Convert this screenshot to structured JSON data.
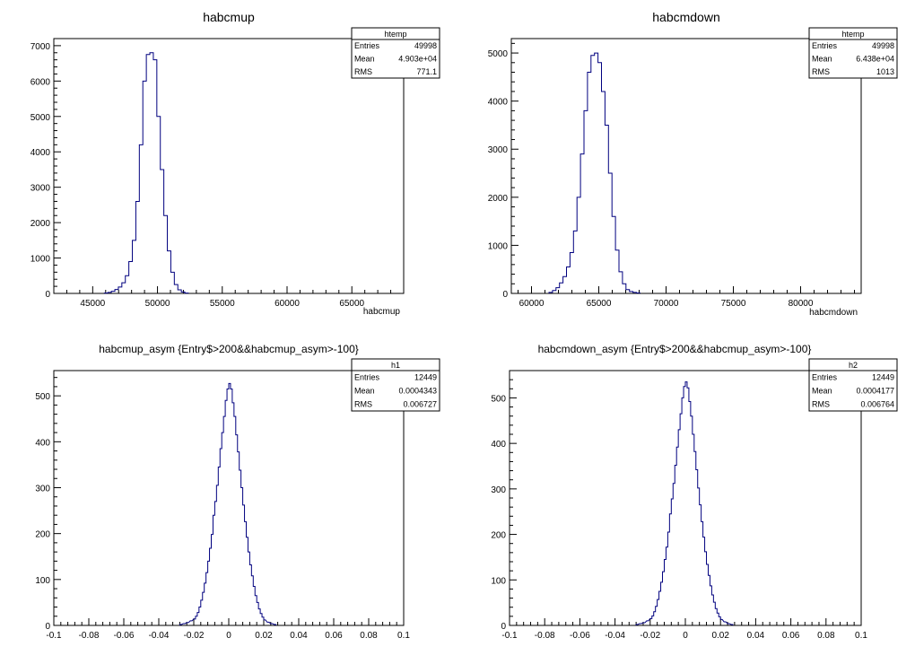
{
  "chart_data": [
    {
      "type": "histogram",
      "title": "habcmup",
      "xlabel": "habcmup",
      "ylabel": "",
      "xlim": [
        42000,
        69000
      ],
      "ylim": [
        0,
        7200
      ],
      "x_ticks": [
        45000,
        50000,
        55000,
        60000,
        65000
      ],
      "y_ticks": [
        0,
        1000,
        2000,
        3000,
        4000,
        5000,
        6000,
        7000
      ],
      "x_tick_labels": [
        "45000",
        "50000",
        "55000",
        "60000",
        "65000"
      ],
      "y_tick_labels": [
        "0",
        "1000",
        "2000",
        "3000",
        "4000",
        "5000",
        "6000",
        "7000"
      ],
      "bin_width": 270,
      "bins": [
        [
          45900,
          10
        ],
        [
          46170,
          30
        ],
        [
          46440,
          60
        ],
        [
          46710,
          110
        ],
        [
          46980,
          180
        ],
        [
          47250,
          300
        ],
        [
          47520,
          500
        ],
        [
          47790,
          900
        ],
        [
          48060,
          1500
        ],
        [
          48330,
          2600
        ],
        [
          48600,
          4200
        ],
        [
          48870,
          6000
        ],
        [
          49140,
          6750
        ],
        [
          49410,
          6800
        ],
        [
          49680,
          6600
        ],
        [
          49950,
          5000
        ],
        [
          50220,
          3500
        ],
        [
          50490,
          2200
        ],
        [
          50760,
          1200
        ],
        [
          51030,
          600
        ],
        [
          51300,
          250
        ],
        [
          51570,
          100
        ],
        [
          51840,
          40
        ],
        [
          52110,
          10
        ]
      ],
      "stats": {
        "name": "htemp",
        "rows": [
          {
            "label": "Entries",
            "value": "49998"
          },
          {
            "label": "Mean",
            "value": "4.903e+04"
          },
          {
            "label": "RMS",
            "value": "771.1"
          }
        ]
      }
    },
    {
      "type": "histogram",
      "title": "habcmdown",
      "xlabel": "habcmdown",
      "ylabel": "",
      "xlim": [
        58500,
        84500
      ],
      "ylim": [
        0,
        5300
      ],
      "x_ticks": [
        60000,
        65000,
        70000,
        75000,
        80000
      ],
      "y_ticks": [
        0,
        1000,
        2000,
        3000,
        4000,
        5000
      ],
      "x_tick_labels": [
        "60000",
        "65000",
        "70000",
        "75000",
        "80000"
      ],
      "y_tick_labels": [
        "0",
        "1000",
        "2000",
        "3000",
        "4000",
        "5000"
      ],
      "bin_width": 260,
      "bins": [
        [
          61300,
          20
        ],
        [
          61560,
          60
        ],
        [
          61820,
          120
        ],
        [
          62080,
          220
        ],
        [
          62340,
          350
        ],
        [
          62600,
          550
        ],
        [
          62860,
          850
        ],
        [
          63120,
          1300
        ],
        [
          63380,
          2000
        ],
        [
          63640,
          2900
        ],
        [
          63900,
          3800
        ],
        [
          64160,
          4600
        ],
        [
          64420,
          4950
        ],
        [
          64680,
          5000
        ],
        [
          64940,
          4800
        ],
        [
          65200,
          4200
        ],
        [
          65460,
          3500
        ],
        [
          65720,
          2500
        ],
        [
          65980,
          1600
        ],
        [
          66240,
          900
        ],
        [
          66500,
          450
        ],
        [
          66760,
          200
        ],
        [
          67020,
          80
        ],
        [
          67280,
          40
        ],
        [
          67540,
          20
        ],
        [
          67800,
          10
        ]
      ],
      "stats": {
        "name": "htemp",
        "rows": [
          {
            "label": "Entries",
            "value": "49998"
          },
          {
            "label": "Mean",
            "value": "6.438e+04"
          },
          {
            "label": "RMS",
            "value": "1013"
          }
        ]
      }
    },
    {
      "type": "histogram",
      "title": "habcmup_asym {Entry$>200&&habcmup_asym>-100}",
      "xlabel": "",
      "ylabel": "",
      "xlim": [
        -0.1,
        0.1
      ],
      "ylim": [
        0,
        555
      ],
      "x_ticks": [
        -0.1,
        -0.08,
        -0.06,
        -0.04,
        -0.02,
        0,
        0.02,
        0.04,
        0.06,
        0.08,
        0.1
      ],
      "y_ticks": [
        0,
        100,
        200,
        300,
        400,
        500
      ],
      "x_tick_labels": [
        "-0.1",
        "-0.08",
        "-0.06",
        "-0.04",
        "-0.02",
        "0",
        "0.02",
        "0.04",
        "0.06",
        "0.08",
        "0.1"
      ],
      "y_tick_labels": [
        "0",
        "100",
        "200",
        "300",
        "400",
        "500"
      ],
      "bin_width": 0.001,
      "bins": [
        [
          -0.028,
          2
        ],
        [
          -0.026,
          4
        ],
        [
          -0.024,
          6
        ],
        [
          -0.022,
          10
        ],
        [
          -0.02,
          14
        ],
        [
          -0.019,
          20
        ],
        [
          -0.018,
          28
        ],
        [
          -0.017,
          40
        ],
        [
          -0.016,
          55
        ],
        [
          -0.015,
          72
        ],
        [
          -0.014,
          92
        ],
        [
          -0.013,
          115
        ],
        [
          -0.012,
          140
        ],
        [
          -0.011,
          168
        ],
        [
          -0.01,
          198
        ],
        [
          -0.009,
          240
        ],
        [
          -0.008,
          270
        ],
        [
          -0.007,
          305
        ],
        [
          -0.006,
          345
        ],
        [
          -0.005,
          385
        ],
        [
          -0.004,
          420
        ],
        [
          -0.003,
          455
        ],
        [
          -0.002,
          490
        ],
        [
          -0.001,
          515
        ],
        [
          0,
          527
        ],
        [
          0.001,
          515
        ],
        [
          0.002,
          485
        ],
        [
          0.003,
          455
        ],
        [
          0.004,
          415
        ],
        [
          0.005,
          378
        ],
        [
          0.006,
          338
        ],
        [
          0.007,
          300
        ],
        [
          0.008,
          262
        ],
        [
          0.009,
          226
        ],
        [
          0.01,
          192
        ],
        [
          0.011,
          160
        ],
        [
          0.012,
          132
        ],
        [
          0.013,
          108
        ],
        [
          0.014,
          85
        ],
        [
          0.015,
          65
        ],
        [
          0.016,
          50
        ],
        [
          0.017,
          36
        ],
        [
          0.018,
          26
        ],
        [
          0.019,
          18
        ],
        [
          0.02,
          12
        ],
        [
          0.022,
          7
        ],
        [
          0.024,
          4
        ],
        [
          0.026,
          2
        ]
      ],
      "stats": {
        "name": "h1",
        "rows": [
          {
            "label": "Entries",
            "value": "12449"
          },
          {
            "label": "Mean",
            "value": "0.0004343"
          },
          {
            "label": "RMS",
            "value": "0.006727"
          }
        ]
      }
    },
    {
      "type": "histogram",
      "title": "habcmdown_asym {Entry$>200&&habcmup_asym>-100}",
      "xlabel": "",
      "ylabel": "",
      "xlim": [
        -0.1,
        0.1
      ],
      "ylim": [
        0,
        560
      ],
      "x_ticks": [
        -0.1,
        -0.08,
        -0.06,
        -0.04,
        -0.02,
        0,
        0.02,
        0.04,
        0.06,
        0.08,
        0.1
      ],
      "y_ticks": [
        0,
        100,
        200,
        300,
        400,
        500
      ],
      "x_tick_labels": [
        "-0.1",
        "-0.08",
        "-0.06",
        "-0.04",
        "-0.02",
        "0",
        "0.02",
        "0.04",
        "0.06",
        "0.08",
        "0.1"
      ],
      "y_tick_labels": [
        "0",
        "100",
        "200",
        "300",
        "400",
        "500"
      ],
      "bin_width": 0.001,
      "bins": [
        [
          -0.028,
          2
        ],
        [
          -0.026,
          4
        ],
        [
          -0.024,
          6
        ],
        [
          -0.022,
          10
        ],
        [
          -0.02,
          15
        ],
        [
          -0.019,
          21
        ],
        [
          -0.018,
          30
        ],
        [
          -0.017,
          42
        ],
        [
          -0.016,
          57
        ],
        [
          -0.015,
          75
        ],
        [
          -0.014,
          95
        ],
        [
          -0.013,
          118
        ],
        [
          -0.012,
          145
        ],
        [
          -0.011,
          172
        ],
        [
          -0.01,
          205
        ],
        [
          -0.009,
          245
        ],
        [
          -0.008,
          278
        ],
        [
          -0.007,
          312
        ],
        [
          -0.006,
          352
        ],
        [
          -0.005,
          392
        ],
        [
          -0.004,
          430
        ],
        [
          -0.003,
          465
        ],
        [
          -0.002,
          500
        ],
        [
          -0.001,
          525
        ],
        [
          0,
          535
        ],
        [
          0.001,
          522
        ],
        [
          0.002,
          492
        ],
        [
          0.003,
          460
        ],
        [
          0.004,
          420
        ],
        [
          0.005,
          382
        ],
        [
          0.006,
          342
        ],
        [
          0.007,
          302
        ],
        [
          0.008,
          265
        ],
        [
          0.009,
          228
        ],
        [
          0.01,
          194
        ],
        [
          0.011,
          162
        ],
        [
          0.012,
          134
        ],
        [
          0.013,
          110
        ],
        [
          0.014,
          87
        ],
        [
          0.015,
          67
        ],
        [
          0.016,
          51
        ],
        [
          0.017,
          37
        ],
        [
          0.018,
          27
        ],
        [
          0.019,
          19
        ],
        [
          0.02,
          13
        ],
        [
          0.022,
          8
        ],
        [
          0.024,
          4
        ],
        [
          0.026,
          2
        ]
      ],
      "stats": {
        "name": "h2",
        "rows": [
          {
            "label": "Entries",
            "value": "12449"
          },
          {
            "label": "Mean",
            "value": "0.0004177"
          },
          {
            "label": "RMS",
            "value": "0.006764"
          }
        ]
      }
    }
  ],
  "colors": {
    "histogram_line": "#00007f",
    "frame": "#000000",
    "background": "#ffffff"
  }
}
